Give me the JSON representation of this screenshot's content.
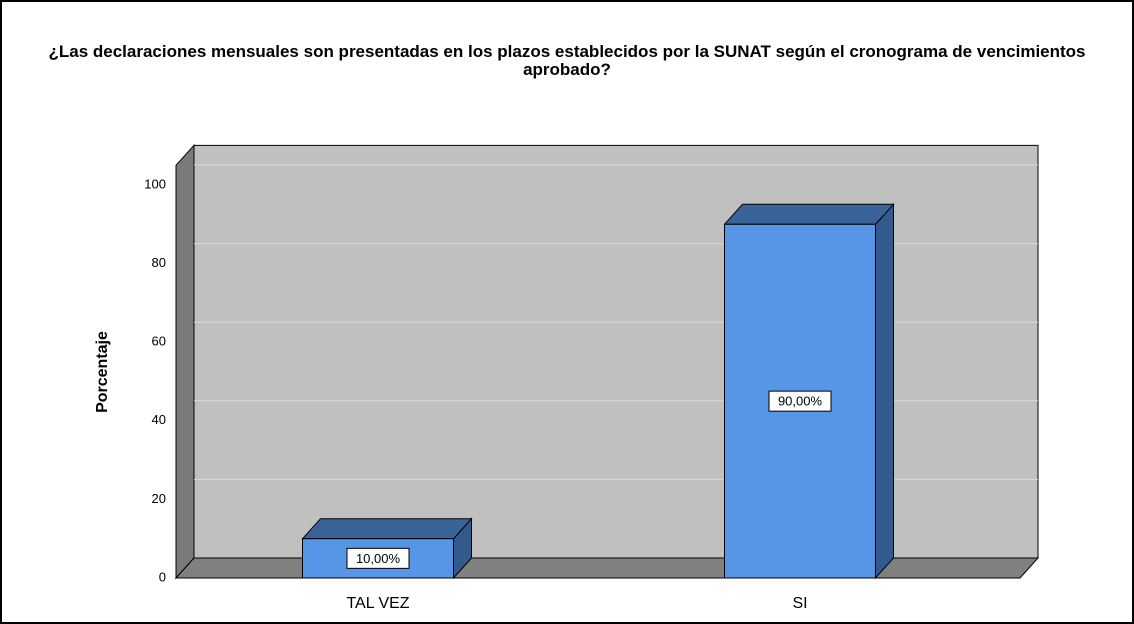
{
  "chart_data": {
    "type": "bar3d",
    "title": "¿Las declaraciones mensuales son presentadas en los plazos establecidos por la SUNAT según el cronograma de vencimientos aprobado?",
    "y_label": "Porcentaje",
    "categories": [
      "TAL VEZ",
      "SI"
    ],
    "values": [
      10,
      90
    ],
    "value_labels": [
      "10,00%",
      "90,00%"
    ],
    "color": "#5795e6",
    "ylim": [
      0,
      105
    ],
    "yticks": [
      0,
      20,
      40,
      60,
      80,
      100
    ],
    "grid": true
  }
}
